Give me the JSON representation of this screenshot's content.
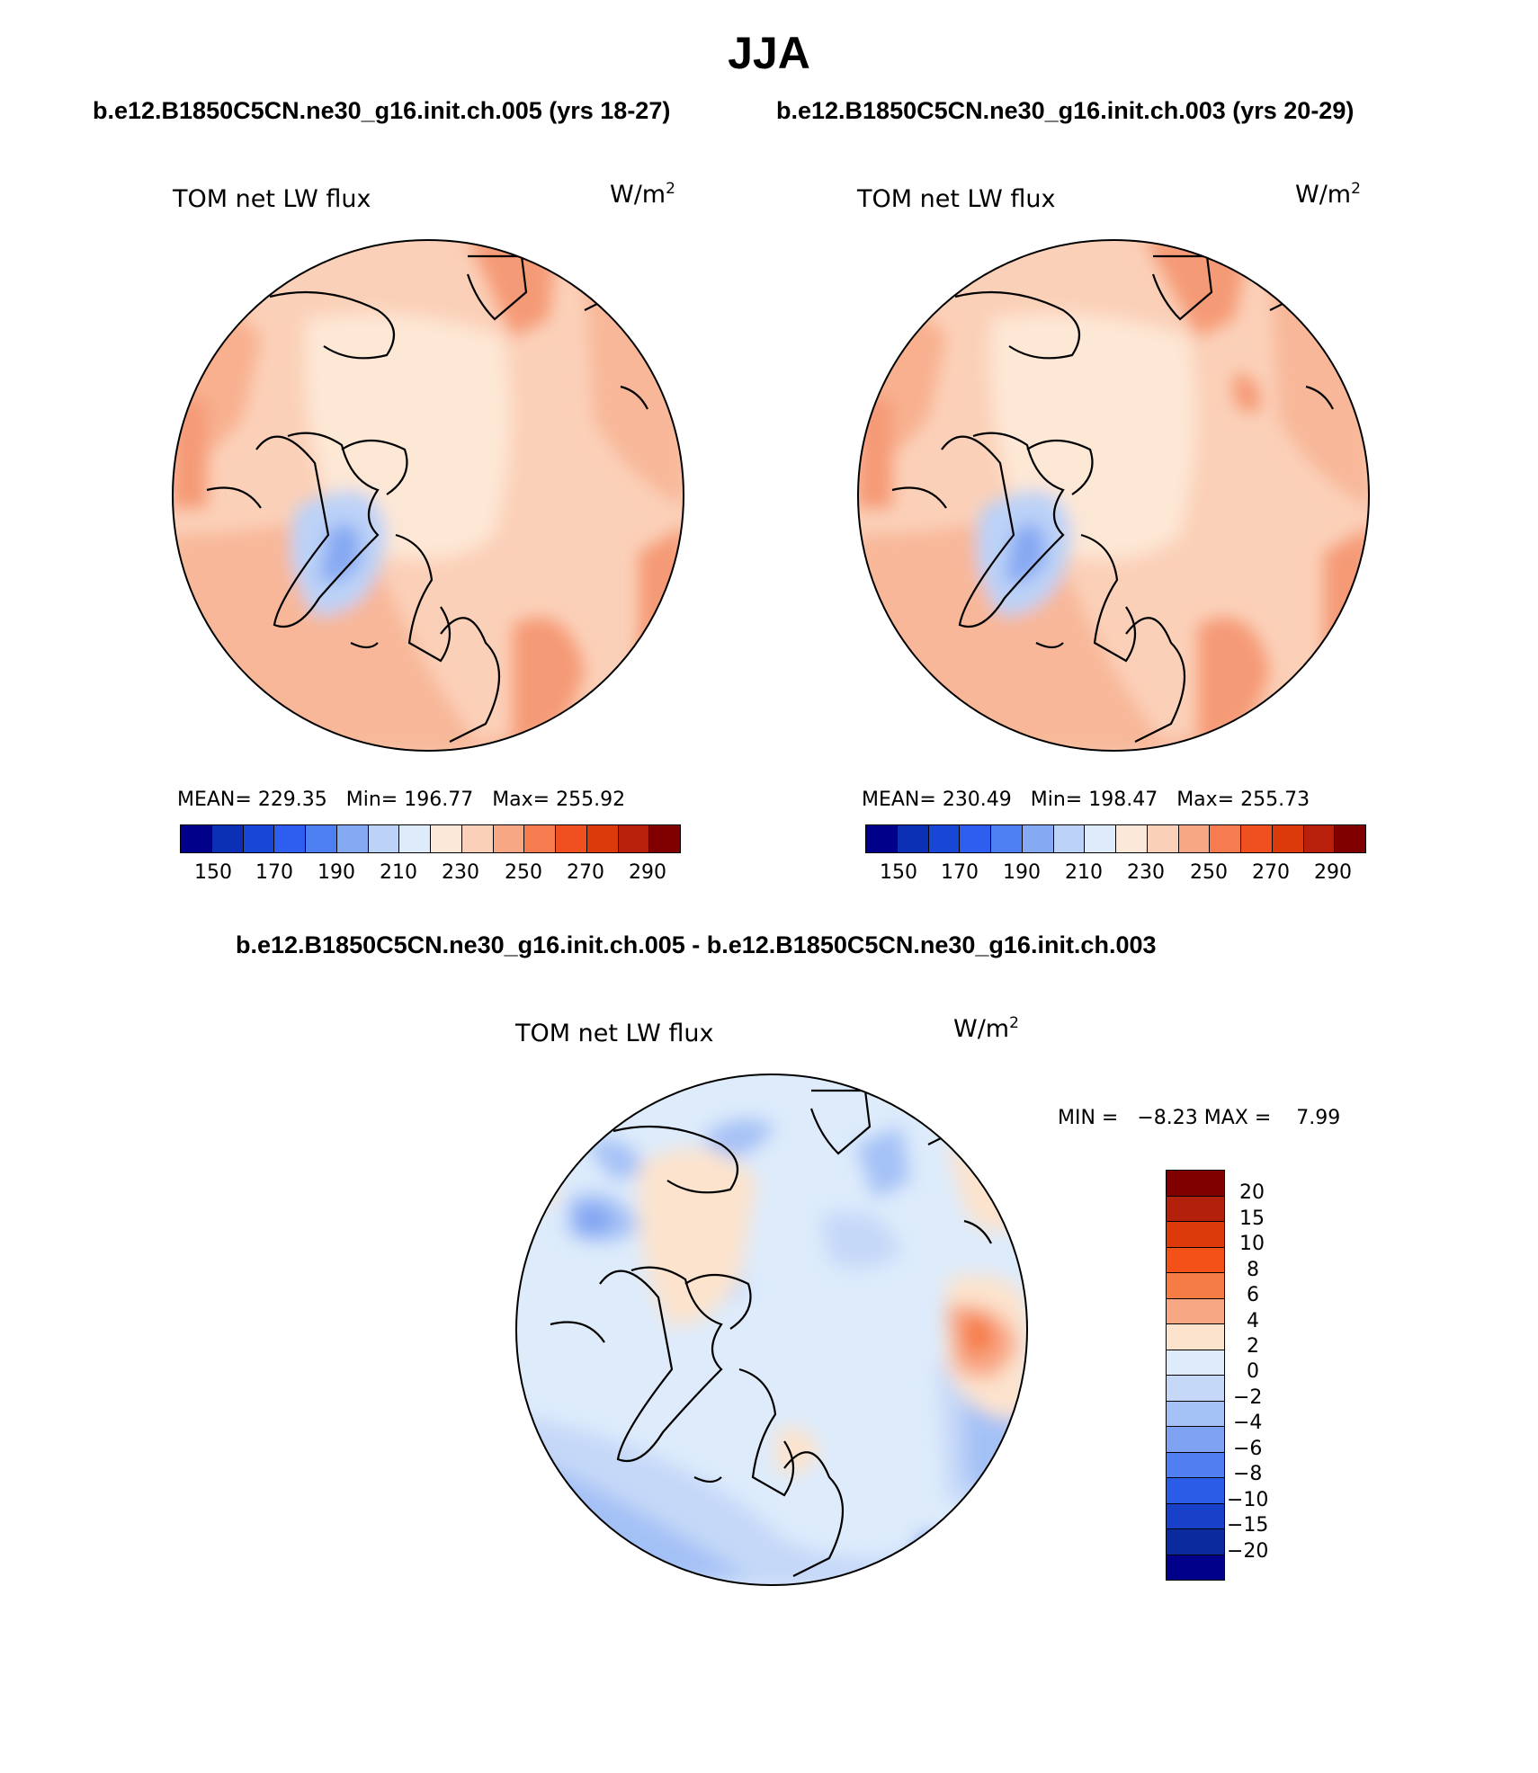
{
  "figure": {
    "title": "JJA",
    "case1_subtitle": "b.e12.B1850C5CN.ne30_g16.init.ch.005 (yrs 18-27)",
    "case2_subtitle": "b.e12.B1850C5CN.ne30_g16.init.ch.003 (yrs 20-29)",
    "diff_subtitle": "b.e12.B1850C5CN.ne30_g16.init.ch.005 - b.e12.B1850C5CN.ne30_g16.init.ch.003"
  },
  "panels": [
    {
      "variable": "TOM net LW flux",
      "units_base": "W/m",
      "units_exp": "2",
      "stats_text": "MEAN= 229.35   Min= 196.77   Max= 255.92"
    },
    {
      "variable": "TOM net LW flux",
      "units_base": "W/m",
      "units_exp": "2",
      "stats_text": "MEAN= 230.49   Min= 198.47   Max= 255.73"
    },
    {
      "variable": "TOM net LW flux",
      "units_base": "W/m",
      "units_exp": "2",
      "stats_text": "MIN =   −8.23 MAX =    7.99"
    }
  ],
  "colorbar_abs": {
    "colors": [
      "#00008b",
      "#0b2fb5",
      "#1847d8",
      "#2e5ef0",
      "#4d7ef2",
      "#86a9f3",
      "#bcd2f7",
      "#ddebfb",
      "#fce8d8",
      "#fbd0b8",
      "#f8a785",
      "#f67c50",
      "#f04f20",
      "#dc3a0b",
      "#b8200b",
      "#800000"
    ],
    "labels": [
      "150",
      "170",
      "190",
      "210",
      "230",
      "250",
      "270",
      "290"
    ]
  },
  "colorbar_diff": {
    "colors": [
      "#800000",
      "#b3200c",
      "#dc3a0b",
      "#f35118",
      "#f67c46",
      "#f8a785",
      "#fce3cd",
      "#ddebfb",
      "#c5d8f8",
      "#a4c1f6",
      "#7fa2f2",
      "#4f7ff0",
      "#2a5ce8",
      "#1840c8",
      "#0b2a9e",
      "#00008b"
    ],
    "labels": [
      "20",
      "15",
      "10",
      "8",
      "6",
      "4",
      "2",
      "0",
      "−2",
      "−4",
      "−6",
      "−8",
      "−10",
      "−15",
      "−20"
    ]
  }
}
